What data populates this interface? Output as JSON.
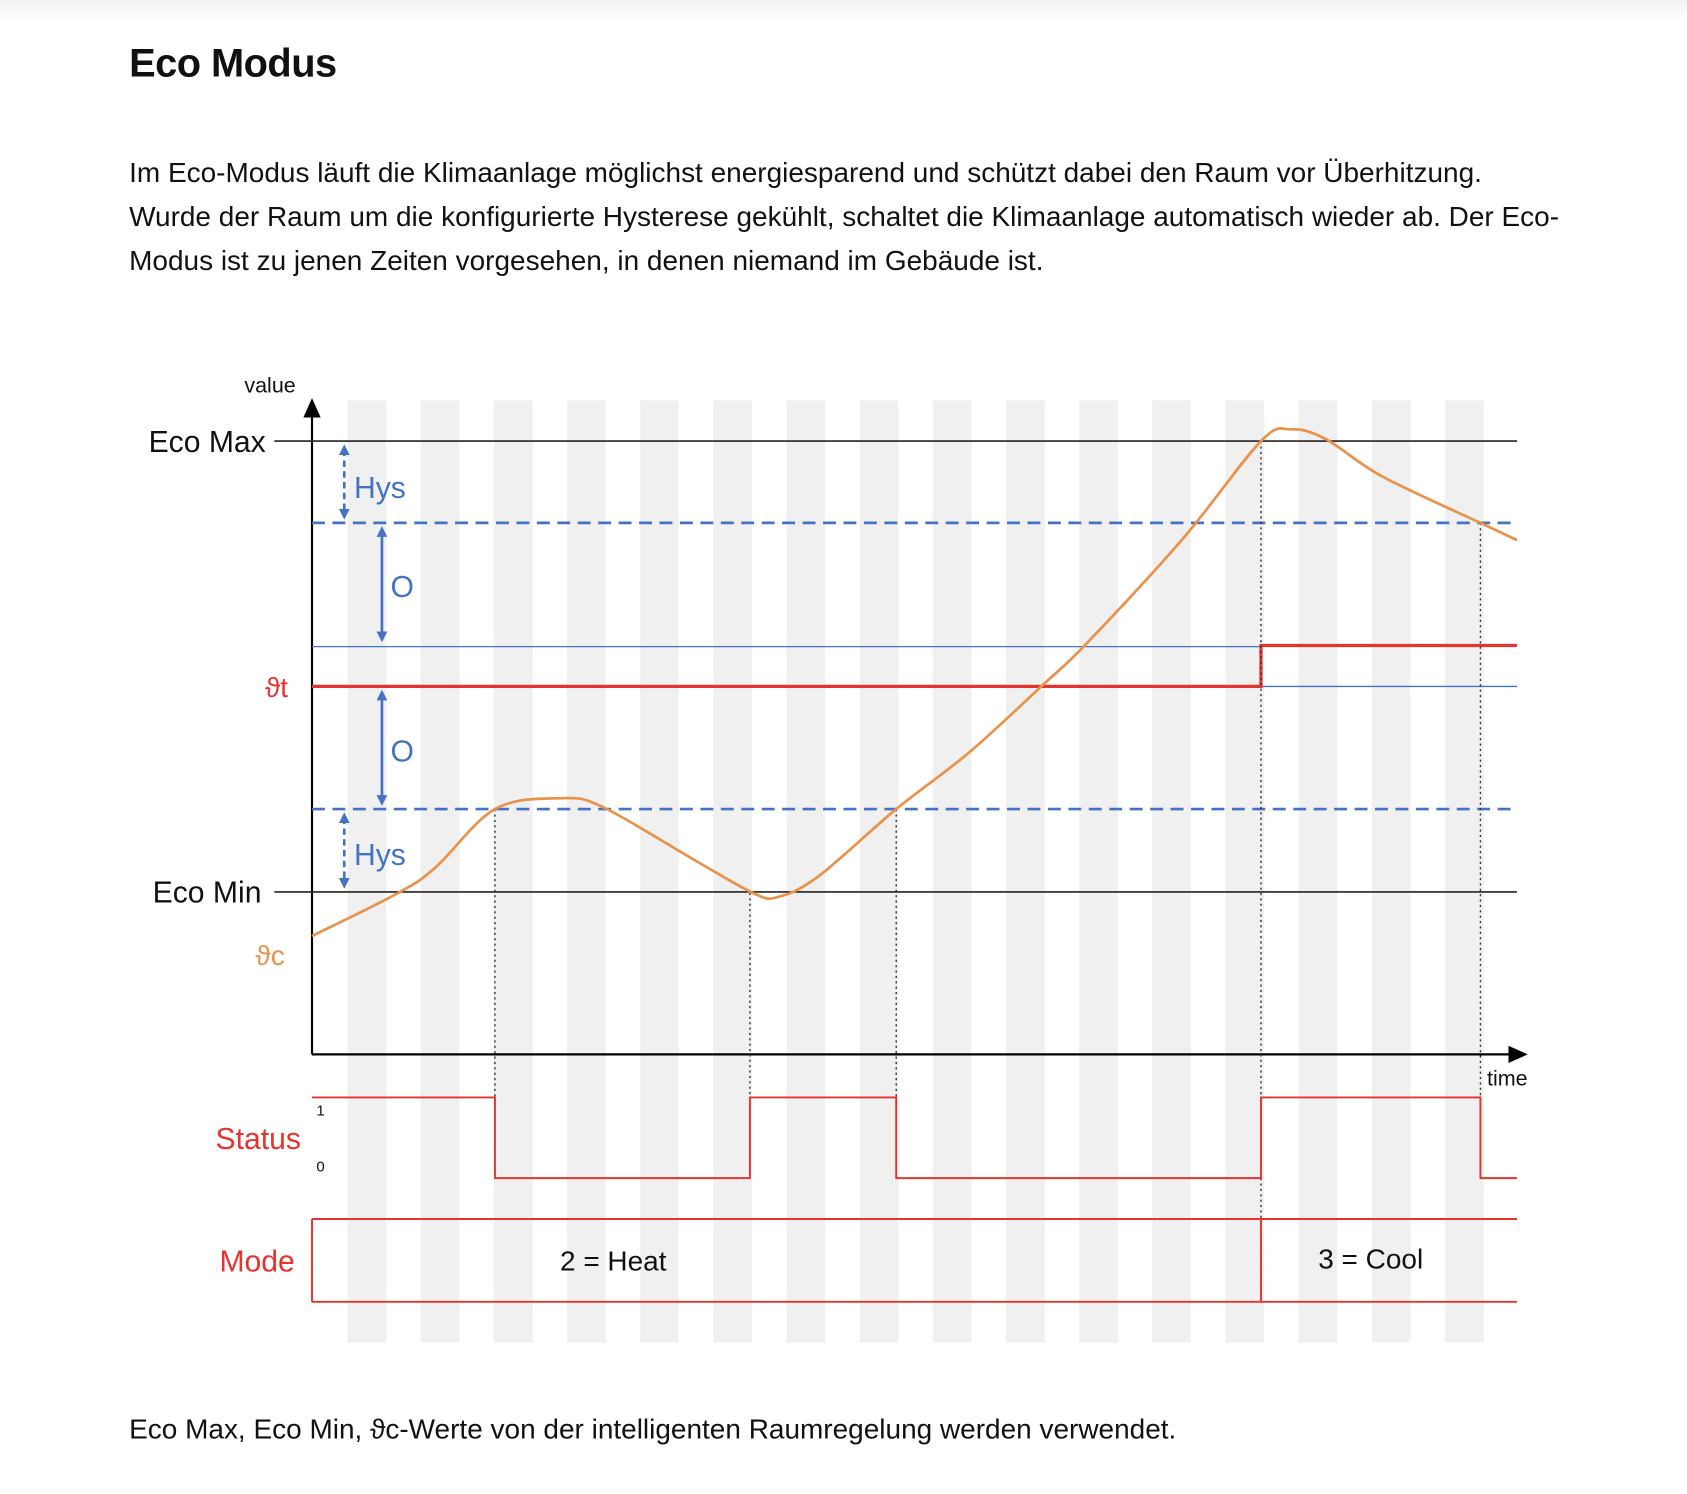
{
  "heading": "Eco Modus",
  "intro": "Im Eco-Modus läuft die Klimaanlage möglichst energiesparend und schützt dabei den Raum vor Überhitzung. Wurde der Raum um die konfigurierte Hysterese gekühlt, schaltet die Klimaanlage automatisch wieder ab. Der Eco-Modus ist zu jenen Zeiten vorgesehen, in denen niemand im Gebäude ist.",
  "diagram": {
    "y_axis_label": "value",
    "x_axis_label": "time",
    "eco_max": "Eco Max",
    "eco_min": "Eco Min",
    "target_label": "ϑt",
    "current_label": "ϑc",
    "hys_label": "Hys",
    "offset_label": "O",
    "status_label": "Status",
    "status_high": "1",
    "status_low": "0",
    "mode_label": "Mode",
    "mode_heat": "2 = Heat",
    "mode_cool": "3 = Cool",
    "colors": {
      "red": "#e3342f",
      "blue": "#4472c4",
      "orange": "#e8924a",
      "stripe": "#f0f0f0"
    }
  },
  "footer": "Eco Max, Eco Min, ϑc-Werte von der intelligenten Raumregelung werden verwendet."
}
